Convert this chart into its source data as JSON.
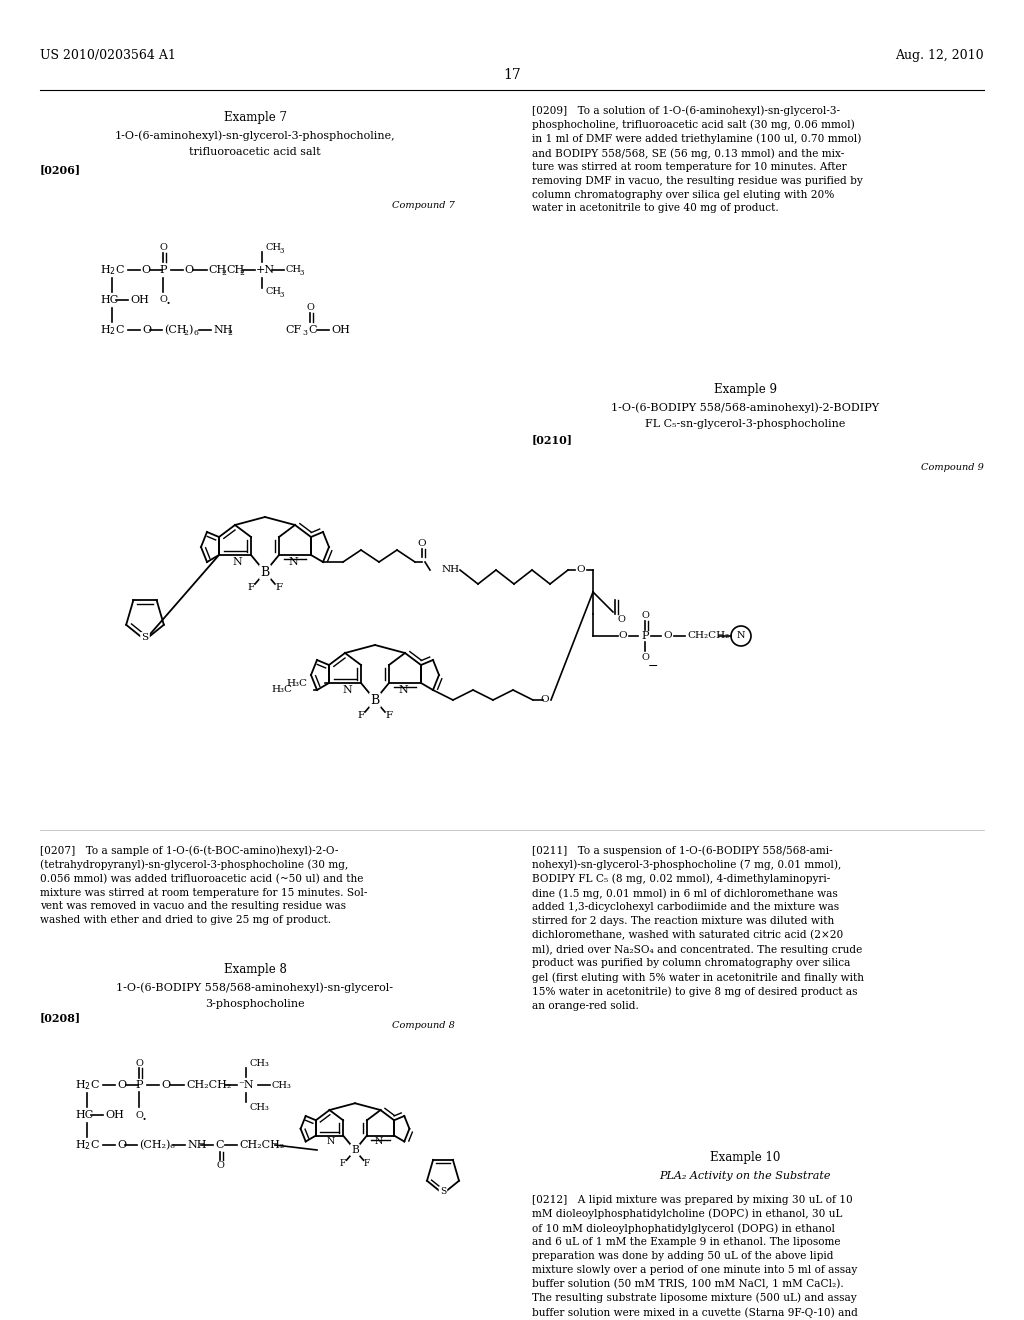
{
  "background_color": "#ffffff",
  "header_left": "US 2010/0203564 A1",
  "header_right": "Aug. 12, 2010",
  "page_number": "17",
  "header_fs": 9.0,
  "title_fs": 8.5,
  "body_fs": 7.6,
  "small_fs": 7.0,
  "ref_fs": 8.0,
  "chem_label_fs": 7.5,
  "para0209": "[0209] To a solution of 1-O-(6-aminohexyl)-sn-glycerol-3-\nphosphocholine, trifluoroacetic acid salt (30 mg, 0.06 mmol)\nin 1 ml of DMF were added triethylamine (100 ul, 0.70 mmol)\nand BODIPY 558/568, SE (56 mg, 0.13 mmol) and the mix-\nture was stirred at room temperature for 10 minutes. After\nremoving DMF in vacuo, the resulting residue was purified by\ncolumn chromatography over silica gel eluting with 20%\nwater in acetonitrile to give 40 mg of product.",
  "para0207": "[0207] To a sample of 1-O-(6-(t-BOC-amino)hexyl)-2-O-\n(tetrahydropyranyl)-sn-glycerol-3-phosphocholine (30 mg,\n0.056 mmol) was added trifluoroacetic acid (~50 ul) and the\nmixture was stirred at room temperature for 15 minutes. Sol-\nvent was removed in vacuo and the resulting residue was\nwashed with ether and dried to give 25 mg of product.",
  "para0211": "[0211] To a suspension of 1-O-(6-BODIPY 558/568-ami-\nnohexyl)-sn-glycerol-3-phosphocholine (7 mg, 0.01 mmol),\nBODIPY FL C₅ (8 mg, 0.02 mmol), 4-dimethylaminopyri-\ndine (1.5 mg, 0.01 mmol) in 6 ml of dichloromethane was\nadded 1,3-dicyclohexyl carbodiimide and the mixture was\nstirred for 2 days. The reaction mixture was diluted with\ndichloromethane, washed with saturated citric acid (2×20\nml), dried over Na₂SO₄ and concentrated. The resulting crude\nproduct was purified by column chromatography over silica\ngel (first eluting with 5% water in acetonitrile and finally with\n15% water in acetonitrile) to give 8 mg of desired product as\nan orange-red solid.",
  "para0212": "[0212] A lipid mixture was prepared by mixing 30 uL of 10\nmM dioleoylphosphatidylcholine (DOPC) in ethanol, 30 uL\nof 10 mM dioleoylphophatidylglycerol (DOPG) in ethanol\nand 6 uL of 1 mM the Example 9 in ethanol. The liposome\npreparation was done by adding 50 uL of the above lipid\nmixture slowly over a period of one minute into 5 ml of assay\nbuffer solution (50 mM TRIS, 100 mM NaCl, 1 mM CaCl₂).\nThe resulting substrate liposome mixture (500 uL) and assay\nbuffer solution were mixed in a cuvette (Starna 9F-Q-10) and"
}
